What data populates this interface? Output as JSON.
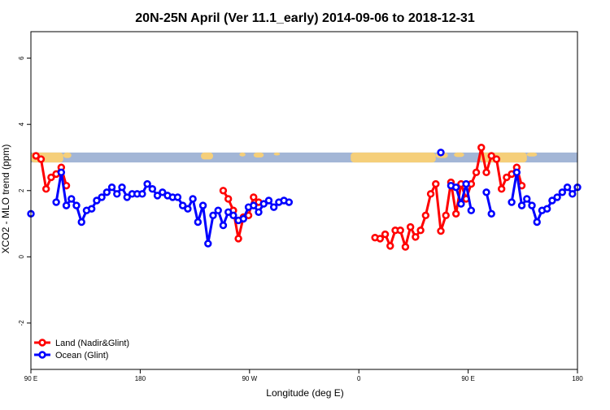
{
  "chart_data": {
    "type": "line",
    "title": "20N-25N April (Ver 11.1_early)   2014-09-06 to 2018-12-31",
    "xlabel": "Longitude (deg E)",
    "ylabel": "XCO2 - MLO trend (ppm)",
    "xlim": [
      -90,
      180
    ],
    "ylim": [
      -3.4,
      6.8
    ],
    "x_ticks": [
      {
        "value": -90,
        "label": "90 E"
      },
      {
        "value": -36,
        "label": "180"
      },
      {
        "value": 18,
        "label": "90 W"
      },
      {
        "value": 72,
        "label": "0"
      },
      {
        "value": 126,
        "label": "90 E"
      },
      {
        "value": 180,
        "label": "180"
      }
    ],
    "y_ticks": [
      {
        "value": -2,
        "label": "-2"
      },
      {
        "value": 0,
        "label": "0"
      },
      {
        "value": 2,
        "label": "2"
      },
      {
        "value": 4,
        "label": "4"
      },
      {
        "value": 6,
        "label": "6"
      }
    ],
    "map_strip": {
      "y_min": 2.85,
      "y_max": 3.15,
      "ocean_color": "#a3b6d6",
      "land_color": "#f5cf7a"
    },
    "legend": {
      "position": "bottom-left"
    },
    "series": [
      {
        "name": "Land (Nadir&Glint)",
        "color": "#ff0000",
        "segments": [
          [
            [
              -87.5,
              3.05
            ],
            [
              -85,
              2.95
            ],
            [
              -82.5,
              2.05
            ],
            [
              -80,
              2.4
            ],
            [
              -77.5,
              2.5
            ],
            [
              -75,
              2.7
            ],
            [
              -72.5,
              2.15
            ]
          ],
          [
            [
              5,
              2.0
            ],
            [
              7.5,
              1.75
            ],
            [
              10,
              1.4
            ],
            [
              12.5,
              0.55
            ],
            [
              15,
              1.2
            ],
            [
              17.5,
              1.25
            ],
            [
              20,
              1.8
            ],
            [
              22.5,
              1.65
            ]
          ],
          [
            [
              80,
              0.58
            ],
            [
              82.5,
              0.55
            ],
            [
              85,
              0.68
            ],
            [
              87.5,
              0.33
            ],
            [
              90,
              0.8
            ],
            [
              92.5,
              0.8
            ],
            [
              95,
              0.3
            ],
            [
              97.5,
              0.9
            ],
            [
              100,
              0.6
            ],
            [
              102.5,
              0.8
            ],
            [
              105,
              1.25
            ],
            [
              107.5,
              1.9
            ],
            [
              110,
              2.2
            ],
            [
              112.5,
              0.78
            ],
            [
              115,
              1.25
            ],
            [
              117.5,
              2.25
            ],
            [
              120,
              1.3
            ],
            [
              122.5,
              2.2
            ],
            [
              125,
              1.75
            ],
            [
              127.5,
              2.2
            ],
            [
              130,
              2.55
            ],
            [
              132.5,
              3.3
            ],
            [
              135,
              2.55
            ],
            [
              137.5,
              3.05
            ],
            [
              140,
              2.95
            ],
            [
              142.5,
              2.05
            ],
            [
              145,
              2.4
            ],
            [
              147.5,
              2.5
            ],
            [
              150,
              2.7
            ],
            [
              152.5,
              2.15
            ]
          ]
        ]
      },
      {
        "name": "Ocean (Glint)",
        "color": "#0000ff",
        "segments": [
          [
            [
              -90,
              1.3
            ]
          ],
          [
            [
              -77.5,
              1.65
            ],
            [
              -75,
              2.55
            ],
            [
              -72.5,
              1.55
            ],
            [
              -70,
              1.75
            ],
            [
              -67.5,
              1.55
            ],
            [
              -65,
              1.05
            ],
            [
              -62.5,
              1.4
            ],
            [
              -60,
              1.45
            ],
            [
              -57.5,
              1.7
            ],
            [
              -55,
              1.8
            ],
            [
              -52.5,
              1.95
            ],
            [
              -50,
              2.1
            ],
            [
              -47.5,
              1.9
            ],
            [
              -45,
              2.1
            ],
            [
              -42.5,
              1.8
            ],
            [
              -40,
              1.9
            ],
            [
              -37.5,
              1.9
            ],
            [
              -35,
              1.9
            ],
            [
              -32.5,
              2.2
            ],
            [
              -30,
              2.05
            ],
            [
              -27.5,
              1.85
            ],
            [
              -25,
              1.95
            ],
            [
              -22.5,
              1.85
            ],
            [
              -20,
              1.8
            ],
            [
              -17.5,
              1.8
            ],
            [
              -15,
              1.55
            ],
            [
              -12.5,
              1.45
            ],
            [
              -10,
              1.75
            ],
            [
              -7.5,
              1.05
            ],
            [
              -5,
              1.55
            ],
            [
              -2.5,
              0.4
            ],
            [
              0,
              1.25
            ],
            [
              2.5,
              1.4
            ],
            [
              5,
              0.95
            ],
            [
              7.5,
              1.35
            ],
            [
              10,
              1.25
            ],
            [
              12.5,
              1.1
            ],
            [
              15,
              1.15
            ],
            [
              17.5,
              1.5
            ],
            [
              20,
              1.55
            ],
            [
              22.5,
              1.35
            ],
            [
              25,
              1.6
            ],
            [
              27.5,
              1.7
            ],
            [
              30,
              1.5
            ],
            [
              32.5,
              1.65
            ],
            [
              35,
              1.7
            ],
            [
              37.5,
              1.65
            ]
          ],
          [
            [
              112.5,
              3.15
            ]
          ],
          [
            [
              117.5,
              2.15
            ],
            [
              120,
              2.1
            ],
            [
              122.5,
              1.6
            ],
            [
              125,
              2.2
            ],
            [
              127.5,
              1.4
            ]
          ],
          [
            [
              135,
              1.95
            ],
            [
              137.5,
              1.3
            ]
          ],
          [
            [
              147.5,
              1.65
            ],
            [
              150,
              2.55
            ],
            [
              152.5,
              1.55
            ],
            [
              155,
              1.75
            ],
            [
              157.5,
              1.55
            ],
            [
              160,
              1.05
            ],
            [
              162.5,
              1.4
            ],
            [
              165,
              1.45
            ],
            [
              167.5,
              1.7
            ],
            [
              170,
              1.8
            ],
            [
              172.5,
              1.95
            ],
            [
              175,
              2.1
            ],
            [
              177.5,
              1.9
            ],
            [
              180,
              2.1
            ]
          ]
        ]
      }
    ]
  }
}
